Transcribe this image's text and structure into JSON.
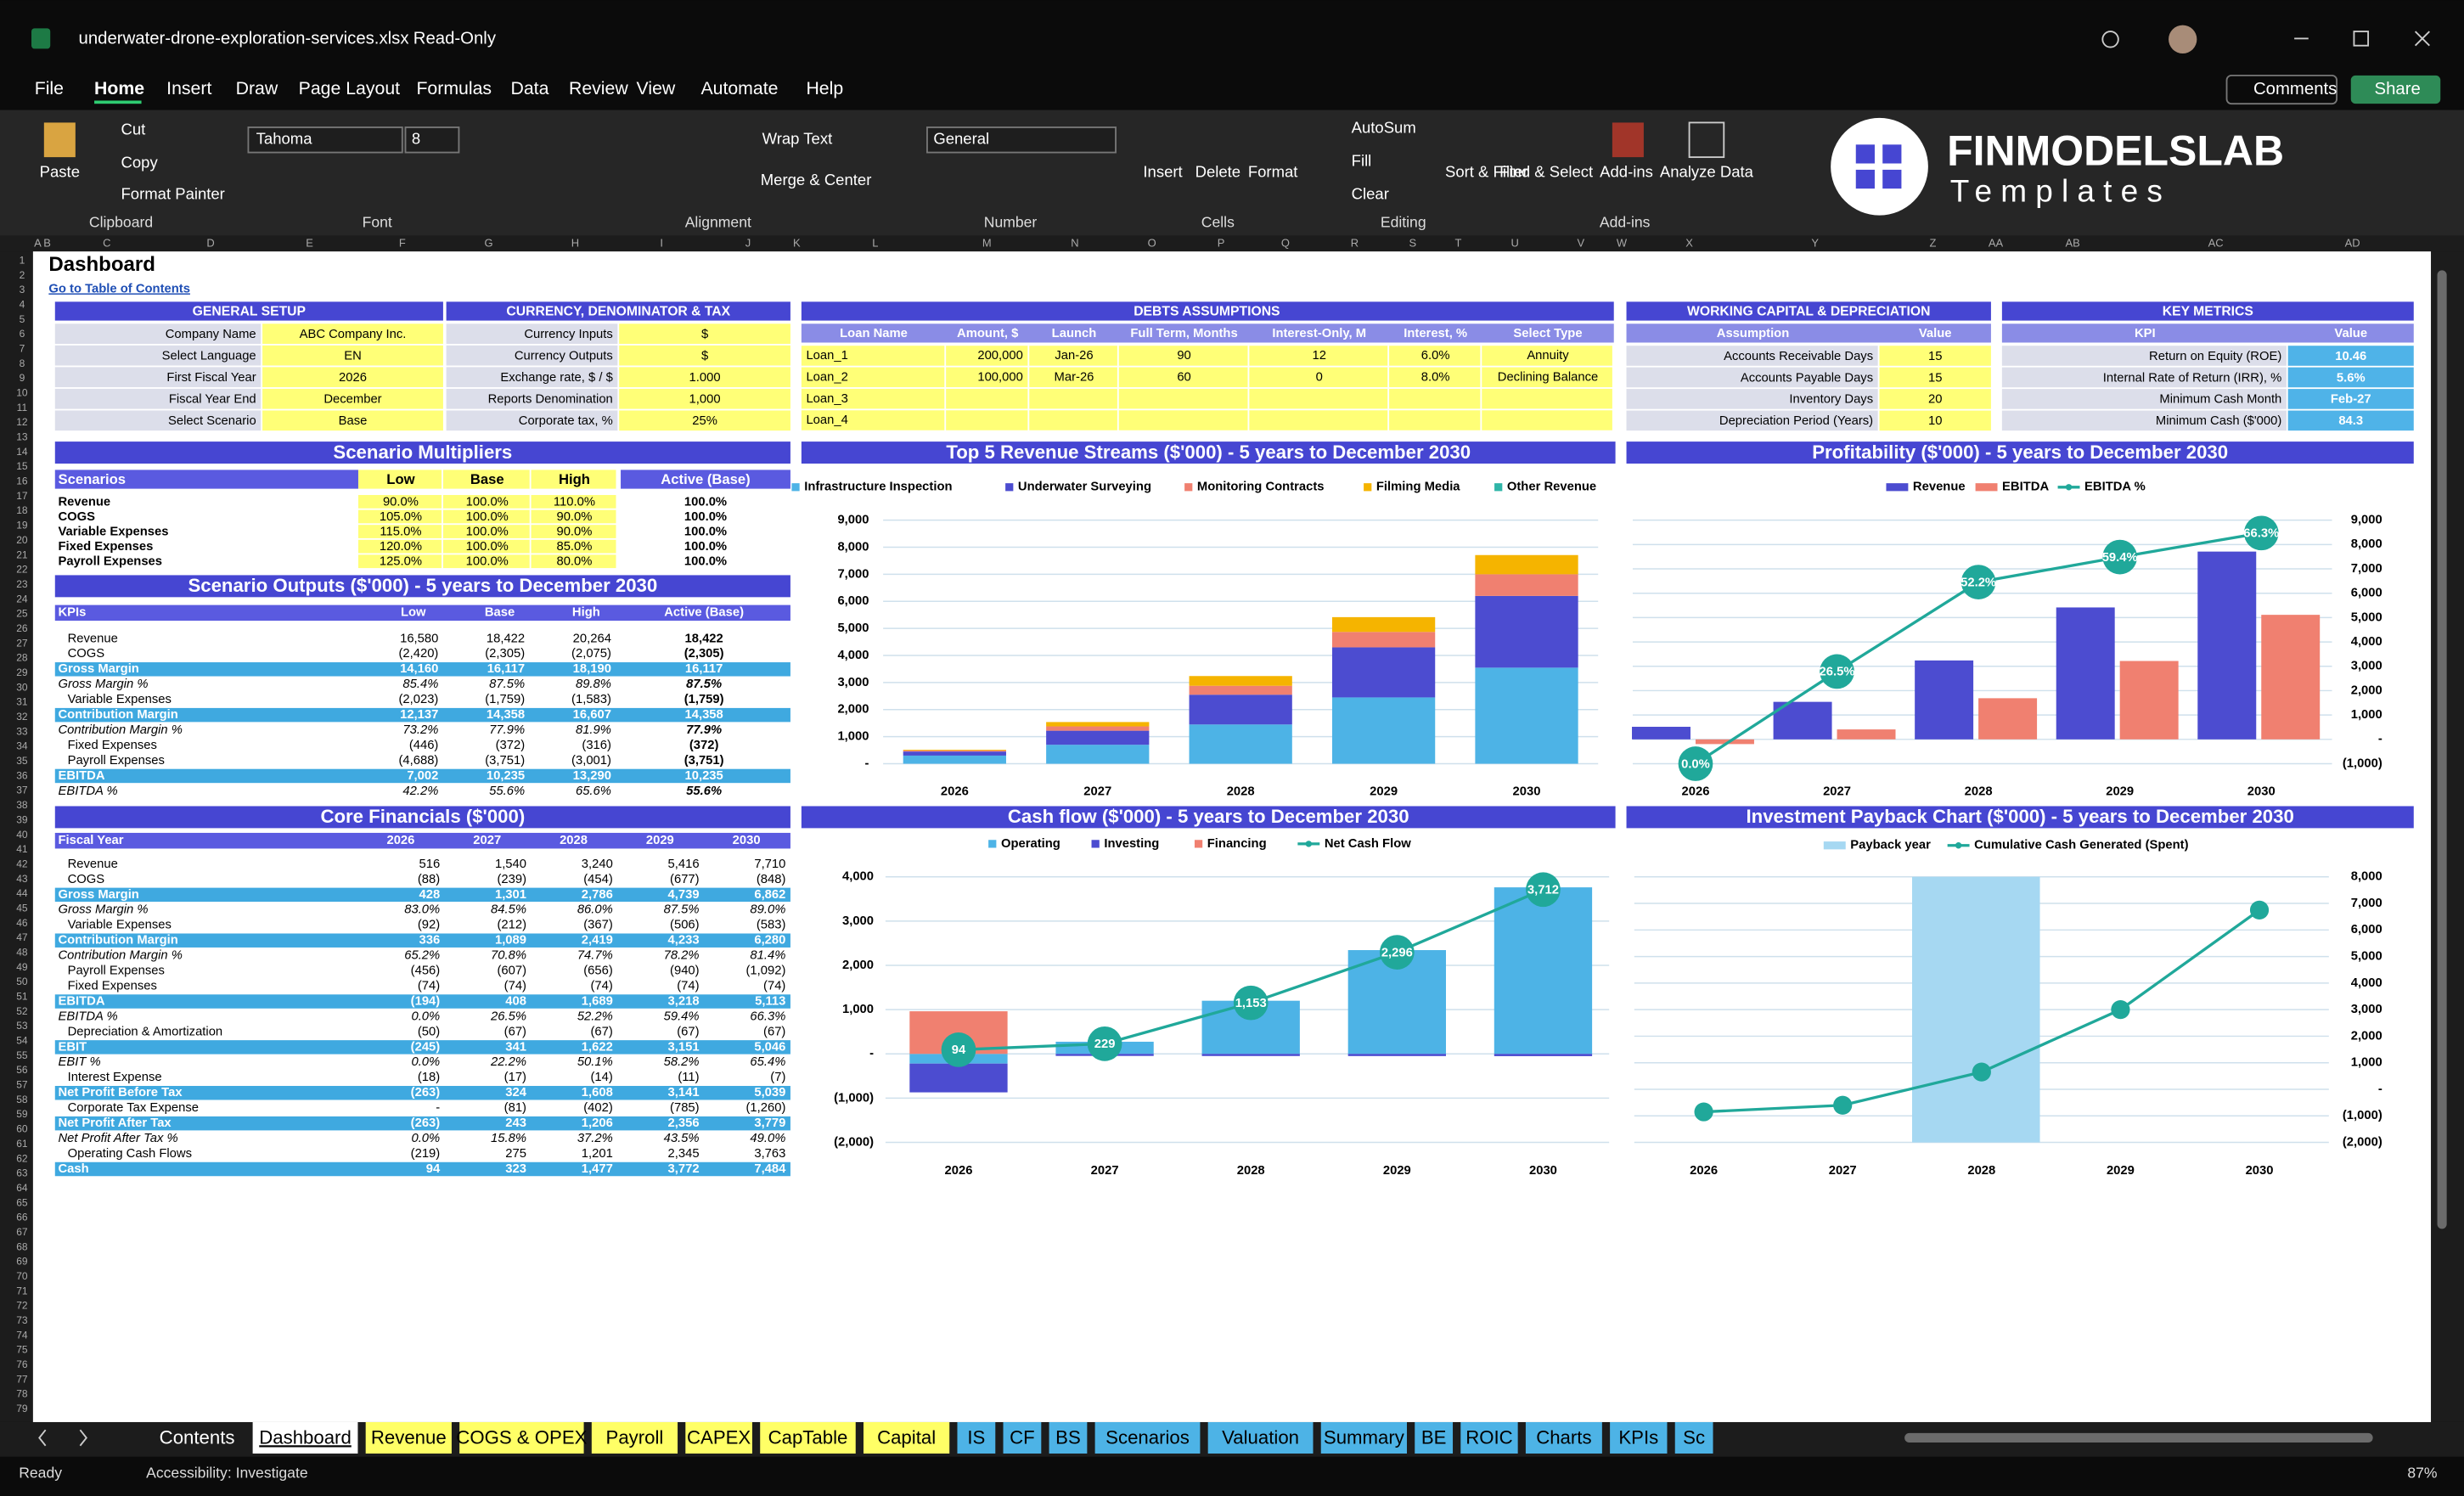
{
  "title_bar": {
    "filename": "underwater-drone-exploration-services.xlsx",
    "mode": "Read-Only"
  },
  "menu": [
    "File",
    "Home",
    "Insert",
    "Draw",
    "Page Layout",
    "Formulas",
    "Data",
    "Review",
    "View",
    "Automate",
    "Help"
  ],
  "ribbon": {
    "buttons": [
      "Paste",
      "Cut",
      "Copy",
      "Format Painter",
      "Tahoma",
      "8",
      "Wrap Text",
      "Merge & Center",
      "General",
      "Insert",
      "Delete",
      "Format",
      "AutoSum",
      "Fill",
      "Clear",
      "Sort & Filter",
      "Find & Select",
      "Add-ins",
      "Analyze Data"
    ],
    "groups": [
      "Clipboard",
      "Font",
      "Alignment",
      "Number",
      "Cells",
      "Editing",
      "Add-ins"
    ],
    "comments": "Comments",
    "share": "Share",
    "logo": {
      "brand": "FINMODELSLAB",
      "tagline": "Templates"
    }
  },
  "columns": [
    "A",
    "B",
    "C",
    "D",
    "E",
    "F",
    "G",
    "H",
    "I",
    "J",
    "K",
    "L",
    "M",
    "N",
    "O",
    "P",
    "Q",
    "R",
    "S",
    "T",
    "U",
    "V",
    "W",
    "X",
    "Y",
    "Z",
    "AA",
    "AB",
    "AC",
    "AD"
  ],
  "rows": [
    1,
    2,
    3,
    4,
    5,
    6,
    7,
    8,
    9,
    10,
    11,
    12,
    13,
    14,
    15,
    16,
    17,
    18,
    19,
    20,
    21,
    22,
    23,
    24,
    25,
    26,
    27,
    28,
    29,
    30,
    31,
    32,
    33,
    34,
    35,
    36,
    37,
    38,
    39,
    40,
    41,
    42,
    43,
    44,
    45,
    46,
    47,
    48,
    49,
    50,
    51,
    52,
    53,
    54,
    55,
    56,
    57,
    58,
    59,
    60,
    61,
    62,
    63,
    64,
    65,
    66,
    67,
    68,
    69,
    70,
    71,
    72,
    73,
    74,
    75,
    76,
    77,
    78,
    79
  ],
  "sheet": {
    "title": "Dashboard",
    "link": "Go to Table of Contents"
  },
  "general_setup": {
    "title": "GENERAL SETUP",
    "rows": [
      [
        "Company Name",
        "ABC Company Inc."
      ],
      [
        "Select Language",
        "EN"
      ],
      [
        "First Fiscal Year",
        "2026"
      ],
      [
        "Fiscal Year End",
        "December"
      ],
      [
        "Select Scenario",
        "Base"
      ]
    ]
  },
  "currency": {
    "title": "CURRENCY, DENOMINATOR & TAX",
    "rows": [
      [
        "Currency Inputs",
        "$"
      ],
      [
        "Currency Outputs",
        "$"
      ],
      [
        "Exchange rate, $ / $",
        "1.000"
      ],
      [
        "Reports Denomination",
        "1,000"
      ],
      [
        "Corporate tax, %",
        "25%"
      ]
    ]
  },
  "debts": {
    "title": "DEBTS ASSUMPTIONS",
    "headers": [
      "Loan Name",
      "Amount, $",
      "Launch",
      "Full Term, Months",
      "Interest-Only, M",
      "Interest, %",
      "Select Type"
    ],
    "rows": [
      [
        "Loan_1",
        "200,000",
        "Jan-26",
        "90",
        "12",
        "6.0%",
        "Annuity"
      ],
      [
        "Loan_2",
        "100,000",
        "Mar-26",
        "60",
        "0",
        "8.0%",
        "Declining Balance"
      ],
      [
        "Loan_3"
      ],
      [
        "Loan_4"
      ]
    ]
  },
  "working_capital": {
    "title": "WORKING CAPITAL & DEPRECIATION",
    "headers": [
      "Assumption",
      "Value"
    ],
    "rows": [
      [
        "Accounts Receivable Days",
        "15"
      ],
      [
        "Accounts Payable Days",
        "15"
      ],
      [
        "Inventory Days",
        "20"
      ],
      [
        "Depreciation Period (Years)",
        "10"
      ]
    ]
  },
  "key_metrics": {
    "title": "KEY METRICS",
    "headers": [
      "KPI",
      "Value"
    ],
    "rows": [
      [
        "Return on Equity (ROE)",
        "10.46"
      ],
      [
        "Internal Rate of Return (IRR), %",
        "5.6%"
      ],
      [
        "Minimum Cash Month",
        "Feb-27"
      ],
      [
        "Minimum Cash ($'000)",
        "84.3"
      ]
    ]
  },
  "scenario_multipliers": {
    "title": "Scenario Multipliers",
    "headers": [
      "Scenarios",
      "Low",
      "Base",
      "High",
      "Active (Base)"
    ],
    "rows": [
      [
        "Revenue",
        "90.0%",
        "100.0%",
        "110.0%",
        "100.0%"
      ],
      [
        "COGS",
        "105.0%",
        "100.0%",
        "90.0%",
        "100.0%"
      ],
      [
        "Variable Expenses",
        "115.0%",
        "100.0%",
        "90.0%",
        "100.0%"
      ],
      [
        "Fixed Expenses",
        "120.0%",
        "100.0%",
        "85.0%",
        "100.0%"
      ],
      [
        "Payroll Expenses",
        "125.0%",
        "100.0%",
        "80.0%",
        "100.0%"
      ]
    ]
  },
  "scenario_outputs": {
    "title": "Scenario Outputs ($'000) - 5 years to December 2030",
    "headers": [
      "KPIs",
      "Low",
      "Base",
      "High",
      "Active (Base)"
    ],
    "rows": [
      {
        "cells": [
          "Revenue",
          "16,580",
          "18,422",
          "20,264",
          "18,422"
        ]
      },
      {
        "cells": [
          "COGS",
          "(2,420)",
          "(2,305)",
          "(2,075)",
          "(2,305)"
        ]
      },
      {
        "cells": [
          "Gross Margin",
          "14,160",
          "16,117",
          "18,190",
          "16,117"
        ],
        "style": "band"
      },
      {
        "cells": [
          "Gross Margin %",
          "85.4%",
          "87.5%",
          "89.8%",
          "87.5%"
        ],
        "style": "pct"
      },
      {
        "cells": [
          "Variable Expenses",
          "(2,023)",
          "(1,759)",
          "(1,583)",
          "(1,759)"
        ]
      },
      {
        "cells": [
          "Contribution Margin",
          "12,137",
          "14,358",
          "16,607",
          "14,358"
        ],
        "style": "band"
      },
      {
        "cells": [
          "Contribution Margin %",
          "73.2%",
          "77.9%",
          "81.9%",
          "77.9%"
        ],
        "style": "pct"
      },
      {
        "cells": [
          "Fixed Expenses",
          "(446)",
          "(372)",
          "(316)",
          "(372)"
        ]
      },
      {
        "cells": [
          "Payroll Expenses",
          "(4,688)",
          "(3,751)",
          "(3,001)",
          "(3,751)"
        ]
      },
      {
        "cells": [
          "EBITDA",
          "7,002",
          "10,235",
          "13,290",
          "10,235"
        ],
        "style": "band"
      },
      {
        "cells": [
          "EBITDA %",
          "42.2%",
          "55.6%",
          "65.6%",
          "55.6%"
        ],
        "style": "pct"
      }
    ]
  },
  "core_financials": {
    "title": "Core Financials ($'000)",
    "headers": [
      "Fiscal Year",
      "2026",
      "2027",
      "2028",
      "2029",
      "2030"
    ],
    "rows": [
      {
        "cells": [
          "Revenue",
          "516",
          "1,540",
          "3,240",
          "5,416",
          "7,710"
        ]
      },
      {
        "cells": [
          "COGS",
          "(88)",
          "(239)",
          "(454)",
          "(677)",
          "(848)"
        ]
      },
      {
        "cells": [
          "Gross Margin",
          "428",
          "1,301",
          "2,786",
          "4,739",
          "6,862"
        ],
        "style": "band"
      },
      {
        "cells": [
          "Gross Margin %",
          "83.0%",
          "84.5%",
          "86.0%",
          "87.5%",
          "89.0%"
        ],
        "style": "pct"
      },
      {
        "cells": [
          "Variable Expenses",
          "(92)",
          "(212)",
          "(367)",
          "(506)",
          "(583)"
        ]
      },
      {
        "cells": [
          "Contribution Margin",
          "336",
          "1,089",
          "2,419",
          "4,233",
          "6,280"
        ],
        "style": "band"
      },
      {
        "cells": [
          "Contribution Margin %",
          "65.2%",
          "70.8%",
          "74.7%",
          "78.2%",
          "81.4%"
        ],
        "style": "pct"
      },
      {
        "cells": [
          "Payroll Expenses",
          "(456)",
          "(607)",
          "(656)",
          "(940)",
          "(1,092)"
        ]
      },
      {
        "cells": [
          "Fixed Expenses",
          "(74)",
          "(74)",
          "(74)",
          "(74)",
          "(74)"
        ]
      },
      {
        "cells": [
          "EBITDA",
          "(194)",
          "408",
          "1,689",
          "3,218",
          "5,113"
        ],
        "style": "band"
      },
      {
        "cells": [
          "EBITDA %",
          "0.0%",
          "26.5%",
          "52.2%",
          "59.4%",
          "66.3%"
        ],
        "style": "pct"
      },
      {
        "cells": [
          "Depreciation & Amortization",
          "(50)",
          "(67)",
          "(67)",
          "(67)",
          "(67)"
        ]
      },
      {
        "cells": [
          "EBIT",
          "(245)",
          "341",
          "1,622",
          "3,151",
          "5,046"
        ],
        "style": "band"
      },
      {
        "cells": [
          "EBIT %",
          "0.0%",
          "22.2%",
          "50.1%",
          "58.2%",
          "65.4%"
        ],
        "style": "pct"
      },
      {
        "cells": [
          "Interest Expense",
          "(18)",
          "(17)",
          "(14)",
          "(11)",
          "(7)"
        ]
      },
      {
        "cells": [
          "Net Profit Before Tax",
          "(263)",
          "324",
          "1,608",
          "3,141",
          "5,039"
        ],
        "style": "band"
      },
      {
        "cells": [
          "Corporate Tax Expense",
          "-",
          "(81)",
          "(402)",
          "(785)",
          "(1,260)"
        ]
      },
      {
        "cells": [
          "Net Profit After Tax",
          "(263)",
          "243",
          "1,206",
          "2,356",
          "3,779"
        ],
        "style": "band"
      },
      {
        "cells": [
          "Net Profit After Tax %",
          "0.0%",
          "15.8%",
          "37.2%",
          "43.5%",
          "49.0%"
        ],
        "style": "pct"
      },
      {
        "cells": [
          "Operating Cash Flows",
          "(219)",
          "275",
          "1,201",
          "2,345",
          "3,763"
        ]
      },
      {
        "cells": [
          "Cash",
          "94",
          "323",
          "1,477",
          "3,772",
          "7,484"
        ],
        "style": "band"
      }
    ]
  },
  "chart_data": [
    {
      "type": "bar",
      "stacked": true,
      "title": "Top 5 Revenue Streams ($'000) - 5 years to December 2030",
      "categories": [
        "2026",
        "2027",
        "2028",
        "2029",
        "2030"
      ],
      "series": [
        {
          "name": "Infrastructure Inspection",
          "color": "#4db3e6",
          "values": [
            300,
            700,
            1450,
            2450,
            3550
          ]
        },
        {
          "name": "Underwater Surveying",
          "color": "#4c4cd0",
          "values": [
            150,
            520,
            1100,
            1850,
            2650
          ]
        },
        {
          "name": "Monitoring Contracts",
          "color": "#f08070",
          "values": [
            40,
            160,
            330,
            570,
            800
          ]
        },
        {
          "name": "Filming Media",
          "color": "#f5b400",
          "values": [
            26,
            160,
            360,
            546,
            710
          ]
        },
        {
          "name": "Other Revenue",
          "color": "#2fb5a8",
          "values": [
            0,
            0,
            0,
            0,
            0
          ]
        }
      ],
      "ylim": [
        0,
        9000
      ],
      "yticks": [
        {
          "value": 0,
          "label": "-"
        },
        {
          "value": 1000,
          "label": "1,000"
        },
        {
          "value": 2000,
          "label": "2,000"
        },
        {
          "value": 3000,
          "label": "3,000"
        },
        {
          "value": 4000,
          "label": "4,000"
        },
        {
          "value": 5000,
          "label": "5,000"
        },
        {
          "value": 6000,
          "label": "6,000"
        },
        {
          "value": 7000,
          "label": "7,000"
        },
        {
          "value": 8000,
          "label": "8,000"
        },
        {
          "value": 9000,
          "label": "9,000"
        }
      ],
      "grid": true,
      "legend": "top",
      "axis_side": "left"
    },
    {
      "type": "bar",
      "stacked": false,
      "title": "Profitability ($'000) - 5 years to December 2030",
      "categories": [
        "2026",
        "2027",
        "2028",
        "2029",
        "2030"
      ],
      "series": [
        {
          "name": "Revenue",
          "color": "#4c4cd0",
          "values": [
            516,
            1540,
            3240,
            5416,
            7710
          ]
        },
        {
          "name": "EBITDA",
          "color": "#f08070",
          "values": [
            -194,
            408,
            1689,
            3218,
            5113
          ]
        },
        {
          "name": "EBITDA %",
          "color": "#20a89a",
          "type": "line",
          "axis": "y2",
          "values": [
            0,
            26.5,
            52.2,
            59.4,
            66.3
          ],
          "value_labels": [
            "0.0%",
            "26.5%",
            "52.2%",
            "59.4%",
            "66.3%"
          ]
        }
      ],
      "ylim": [
        -1000,
        9000
      ],
      "yticks": [
        {
          "value": -1000,
          "label": "(1,000)"
        },
        {
          "value": 0,
          "label": "-"
        },
        {
          "value": 1000,
          "label": "1,000"
        },
        {
          "value": 2000,
          "label": "2,000"
        },
        {
          "value": 3000,
          "label": "3,000"
        },
        {
          "value": 4000,
          "label": "4,000"
        },
        {
          "value": 5000,
          "label": "5,000"
        },
        {
          "value": 6000,
          "label": "6,000"
        },
        {
          "value": 7000,
          "label": "7,000"
        },
        {
          "value": 8000,
          "label": "8,000"
        },
        {
          "value": 9000,
          "label": "9,000"
        }
      ],
      "y2lim": [
        0,
        70
      ],
      "grid": true,
      "legend": "top",
      "axis_side": "right"
    },
    {
      "type": "bar",
      "stacked": true,
      "title": "Cash flow ($'000) - 5 years to December 2030",
      "categories": [
        "2026",
        "2027",
        "2028",
        "2029",
        "2030"
      ],
      "series": [
        {
          "name": "Operating",
          "color": "#4db3e6",
          "values": [
            -219,
            275,
            1201,
            2345,
            3763
          ]
        },
        {
          "name": "Investing",
          "color": "#4c4cd0",
          "values": [
            -650,
            -46,
            -48,
            -49,
            -51
          ]
        },
        {
          "name": "Financing",
          "color": "#f08070",
          "values": [
            963,
            0,
            0,
            0,
            0
          ]
        },
        {
          "name": "Net Cash Flow",
          "color": "#20a89a",
          "type": "line",
          "values": [
            94,
            229,
            1153,
            2296,
            3712
          ],
          "value_labels": [
            "94",
            "229",
            "1,153",
            "2,296",
            "3,712"
          ]
        }
      ],
      "ylim": [
        -2000,
        4000
      ],
      "yticks": [
        {
          "value": -2000,
          "label": "(2,000)"
        },
        {
          "value": -1000,
          "label": "(1,000)"
        },
        {
          "value": 0,
          "label": "-"
        },
        {
          "value": 1000,
          "label": "1,000"
        },
        {
          "value": 2000,
          "label": "2,000"
        },
        {
          "value": 3000,
          "label": "3,000"
        },
        {
          "value": 4000,
          "label": "4,000"
        }
      ],
      "grid": true,
      "legend": "top",
      "axis_side": "left"
    },
    {
      "type": "bar",
      "stacked": false,
      "title": "Investment Payback Chart ($'000) - 5 years to December 2030",
      "categories": [
        "2026",
        "2027",
        "2028",
        "2029",
        "2030"
      ],
      "series": [
        {
          "name": "Payback year",
          "color": "#a6d8f2",
          "axis": "y2",
          "values": [
            0,
            0,
            1,
            0,
            0
          ]
        },
        {
          "name": "Cumulative Cash Generated (Spent)",
          "color": "#20a89a",
          "type": "line",
          "values": [
            -850,
            -600,
            650,
            3000,
            6750
          ]
        }
      ],
      "ylim": [
        -2000,
        8000
      ],
      "yticks": [
        {
          "value": -2000,
          "label": "(2,000)"
        },
        {
          "value": -1000,
          "label": "(1,000)"
        },
        {
          "value": 0,
          "label": "-"
        },
        {
          "value": 1000,
          "label": "1,000"
        },
        {
          "value": 2000,
          "label": "2,000"
        },
        {
          "value": 3000,
          "label": "3,000"
        },
        {
          "value": 4000,
          "label": "4,000"
        },
        {
          "value": 5000,
          "label": "5,000"
        },
        {
          "value": 6000,
          "label": "6,000"
        },
        {
          "value": 7000,
          "label": "7,000"
        },
        {
          "value": 8000,
          "label": "8,000"
        }
      ],
      "y2lim": [
        0,
        1
      ],
      "grid": true,
      "legend": "top",
      "axis_side": "right"
    }
  ],
  "tabs": [
    {
      "name": "Contents"
    },
    {
      "name": "Dashboard",
      "active": true
    },
    {
      "name": "Revenue",
      "color": "#ffff66"
    },
    {
      "name": "COGS & OPEX",
      "color": "#ffff66"
    },
    {
      "name": "Payroll",
      "color": "#ffff66"
    },
    {
      "name": "CAPEX",
      "color": "#ffff66"
    },
    {
      "name": "CapTable",
      "color": "#ffff66"
    },
    {
      "name": "Capital",
      "color": "#ffff66"
    },
    {
      "name": "IS",
      "color": "#4db3e6"
    },
    {
      "name": "CF",
      "color": "#4db3e6"
    },
    {
      "name": "BS",
      "color": "#4db3e6"
    },
    {
      "name": "Scenarios",
      "color": "#4db3e6"
    },
    {
      "name": "Valuation",
      "color": "#4db3e6"
    },
    {
      "name": "Summary",
      "color": "#4db3e6"
    },
    {
      "name": "BE",
      "color": "#4db3e6"
    },
    {
      "name": "ROIC",
      "color": "#4db3e6"
    },
    {
      "name": "Charts",
      "color": "#4db3e6"
    },
    {
      "name": "KPIs",
      "color": "#4db3e6"
    },
    {
      "name": "Sc",
      "color": "#4db3e6"
    }
  ],
  "status": {
    "ready": "Ready",
    "accessibility": "Accessibility: Investigate",
    "zoom": "87%"
  }
}
